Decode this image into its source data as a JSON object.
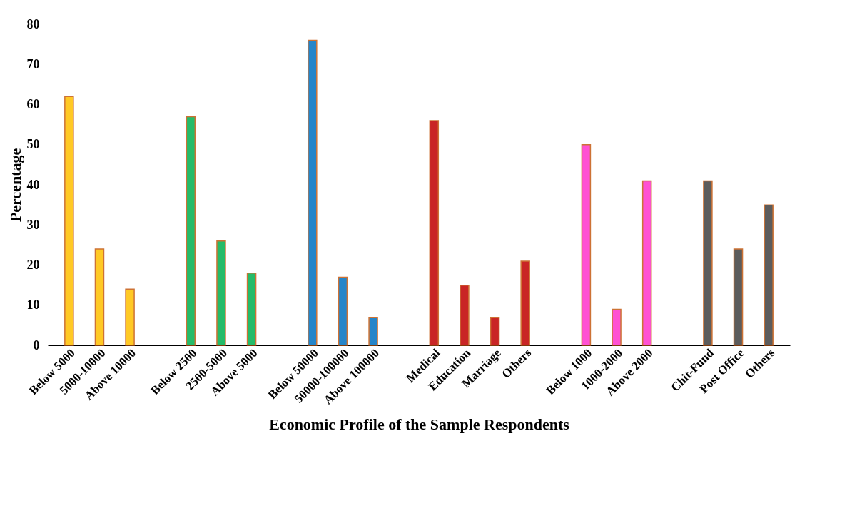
{
  "chart_data": {
    "type": "bar",
    "xlabel": "Economic Profile of the Sample Respondents",
    "ylabel": "Percentage",
    "categories": [
      "Below 5000",
      "5000-10000",
      "Above 10000",
      null,
      "Below 2500",
      "2500-5000",
      "Above 5000",
      null,
      "Below 50000",
      "50000-100000",
      "Above 100000",
      null,
      "Medical",
      "Education",
      "Marriage",
      "Others",
      null,
      "Below 1000",
      "1000-2000",
      "Above 2000",
      null,
      "Chit-Fund",
      "Post Office",
      "Others"
    ],
    "values": [
      62,
      24,
      14,
      null,
      57,
      26,
      18,
      null,
      76,
      17,
      7,
      null,
      56,
      15,
      7,
      21,
      null,
      50,
      9,
      41,
      null,
      41,
      24,
      35
    ],
    "colors": [
      "#ffc000",
      "#ffc000",
      "#ffc000",
      "#ffffff",
      "#00b050",
      "#00b050",
      "#00b050",
      "#ffffff",
      "#0070c0",
      "#0070c0",
      "#0070c0",
      "#ffffff",
      "#c00000",
      "#c00000",
      "#c00000",
      "#c00000",
      "#ffffff",
      "#ff33cc",
      "#ff33cc",
      "#ff33cc",
      "#ffffff",
      "#404040",
      "#404040",
      "#404040"
    ],
    "ylim": [
      0,
      80
    ],
    "yticks": [
      0,
      10,
      20,
      30,
      40,
      50,
      60,
      70,
      80
    ],
    "grid": false
  }
}
